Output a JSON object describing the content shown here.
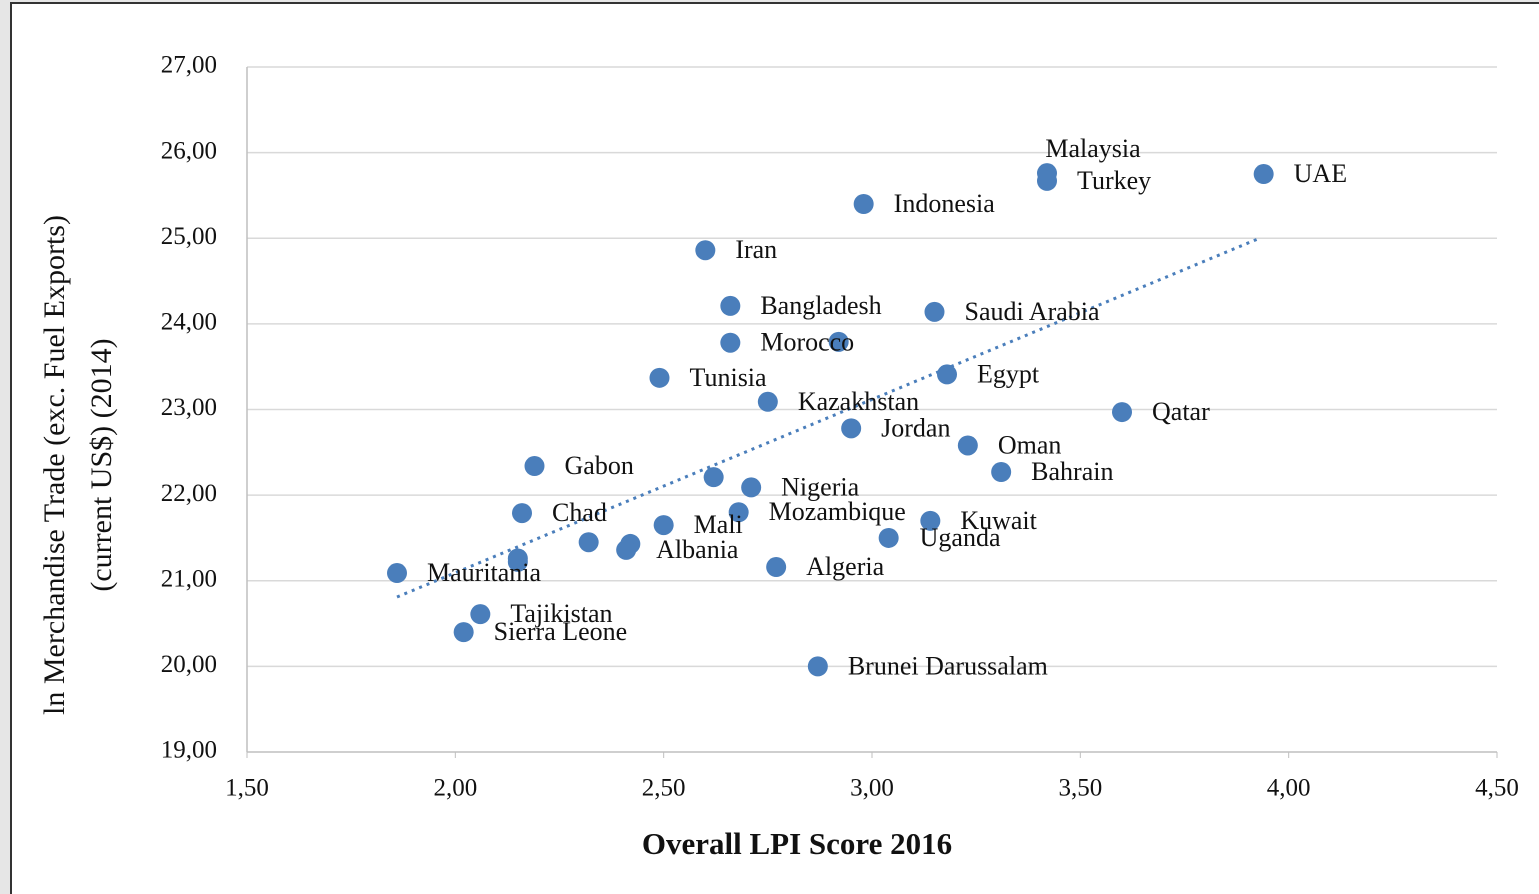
{
  "chart_data": {
    "type": "scatter",
    "x_label": "Overall LPI Score 2016",
    "y_label": [
      "ln Merchandise Trade (exc. Fuel Exports)",
      "(current US$) (2014)"
    ],
    "color": "#4a7ebb",
    "x": [
      3.42,
      3.42,
      3.94,
      2.98,
      2.6,
      2.66,
      3.15,
      2.66,
      2.92,
      2.49,
      3.18,
      2.75,
      3.6,
      2.95,
      3.23,
      3.31,
      2.19,
      2.62,
      2.71,
      2.16,
      2.68,
      3.14,
      3.04,
      2.5,
      2.32,
      2.42,
      2.41,
      2.15,
      2.15,
      1.86,
      2.77,
      2.06,
      2.02,
      2.87
    ],
    "values": [
      25.76,
      25.67,
      25.75,
      25.4,
      24.86,
      24.21,
      24.14,
      23.78,
      23.79,
      23.37,
      23.41,
      23.09,
      22.97,
      22.78,
      22.58,
      22.27,
      22.34,
      22.21,
      22.09,
      21.79,
      21.8,
      21.7,
      21.5,
      21.65,
      21.45,
      21.43,
      21.36,
      21.26,
      21.22,
      21.09,
      21.16,
      20.61,
      20.4,
      20.0
    ],
    "labels": [
      "Malaysia",
      "Turkey",
      "UAE",
      "Indonesia",
      "Iran",
      "Bangladesh",
      "Saudi Arabia",
      "Morocco",
      null,
      "Tunisia",
      "Egypt",
      "Kazakhstan",
      "Qatar",
      "Jordan",
      "Oman",
      "Bahrain",
      "Gabon",
      null,
      "Nigeria",
      "Chad",
      "Mozambique",
      "Kuwait",
      "Uganda",
      "Mali",
      null,
      null,
      "Albania",
      null,
      null,
      "Mauritania",
      "Algeria",
      "Tajikistan",
      "Sierra Leone",
      "Brunei Darussalam"
    ],
    "trendline": {
      "x": [
        1.86,
        3.93
      ],
      "y": [
        20.81,
        25.0
      ],
      "style": "dotted"
    },
    "xlim": [
      1.5,
      4.5
    ],
    "xticks": [
      {
        "value": 1.5,
        "label": "1,50"
      },
      {
        "value": 2.0,
        "label": "2,00"
      },
      {
        "value": 2.5,
        "label": "2,50"
      },
      {
        "value": 3.0,
        "label": "3,00"
      },
      {
        "value": 3.5,
        "label": "3,50"
      },
      {
        "value": 4.0,
        "label": "4,00"
      },
      {
        "value": 4.5,
        "label": "4,50"
      }
    ],
    "ylim": [
      19,
      27
    ],
    "yticks": [
      {
        "value": 19,
        "label": "19,00"
      },
      {
        "value": 20,
        "label": "20,00"
      },
      {
        "value": 21,
        "label": "21,00"
      },
      {
        "value": 22,
        "label": "22,00"
      },
      {
        "value": 23,
        "label": "23,00"
      },
      {
        "value": 24,
        "label": "24,00"
      },
      {
        "value": 25,
        "label": "25,00"
      },
      {
        "value": 26,
        "label": "26,00"
      },
      {
        "value": 27,
        "label": "27,00"
      }
    ],
    "grid": true
  }
}
